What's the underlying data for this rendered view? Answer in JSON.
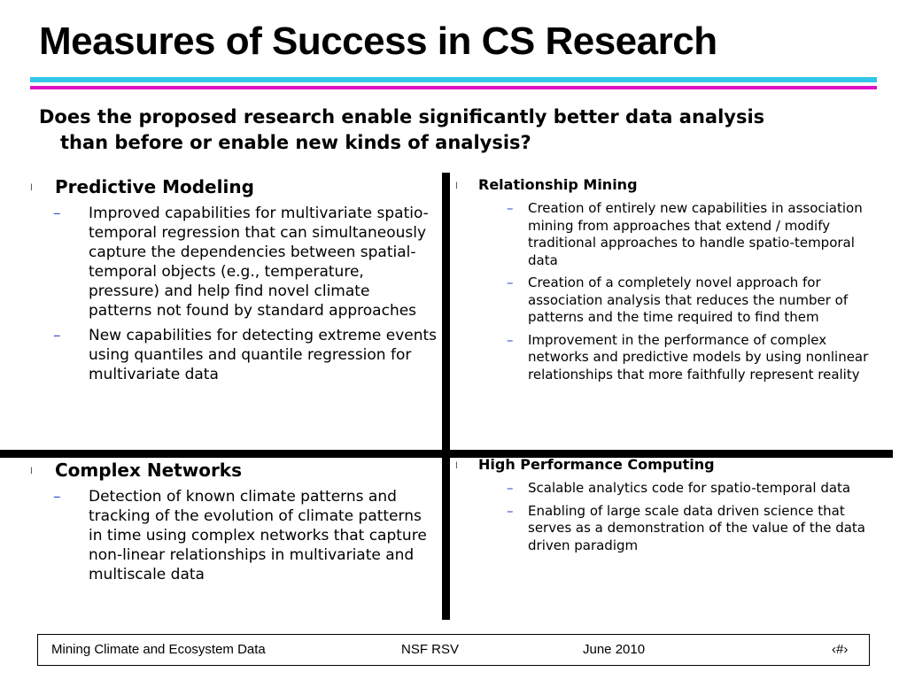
{
  "title": "Measures of Success in CS Research",
  "question": {
    "line1": "Does the proposed research enable significantly better data analysis",
    "line2": "than before or enable new kinds of analysis?"
  },
  "colors": {
    "rule_top": "#33c6e8",
    "rule_bottom": "#e010c8",
    "dash": "#3a52c8"
  },
  "bullet_glyph": "l",
  "dash_glyph": "–",
  "quadrants": {
    "top_left": {
      "heading": "Predictive Modeling",
      "items": [
        "Improved capabilities for multivariate spatio-temporal regression that can simultaneously capture the dependencies between spatial-temporal objects (e.g., temperature, pressure) and help find novel climate patterns not found by standard approaches",
        "New capabilities for detecting extreme events using quantiles and quantile regression for multivariate data"
      ]
    },
    "top_right": {
      "heading": "Relationship Mining",
      "items": [
        "Creation of entirely new capabilities in association mining from approaches that extend / modify traditional approaches to handle spatio-temporal data",
        "Creation of a completely novel approach for association analysis that reduces the number of patterns and the time required to find them",
        "Improvement in the performance of complex networks and predictive models by using nonlinear relationships that more faithfully represent reality"
      ]
    },
    "bottom_left": {
      "heading": "Complex Networks",
      "items": [
        "Detection of known climate patterns and tracking of the evolution of climate patterns in time using complex networks that capture non-linear relationships in multivariate and multiscale data"
      ]
    },
    "bottom_right": {
      "heading": "High Performance Computing",
      "items": [
        "Scalable analytics code for spatio-temporal data",
        "Enabling of large scale data driven science  that serves as a demonstration of the value of the data driven paradigm"
      ]
    }
  },
  "footer": {
    "left": "Mining Climate and Ecosystem Data",
    "center": "NSF   RSV",
    "date": "June 2010",
    "page": "‹#›"
  }
}
